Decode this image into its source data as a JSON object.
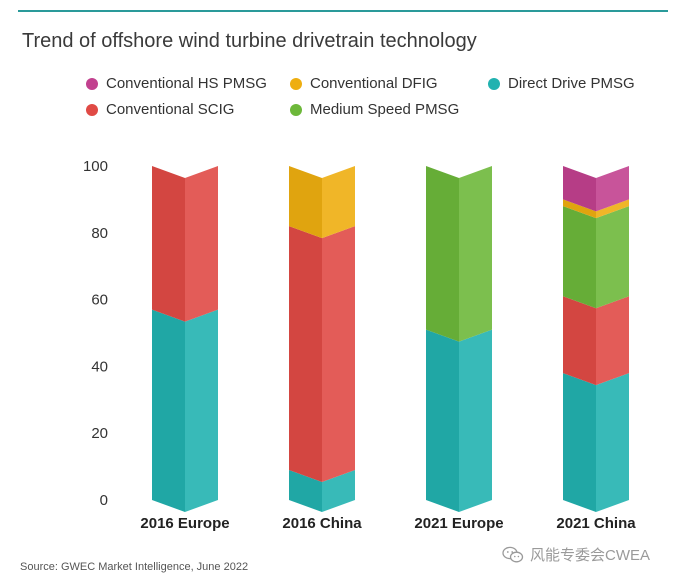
{
  "title": "Trend of offshore wind turbine drivetrain technology",
  "source": "Source: GWEC Market Intelligence, June 2022",
  "watermark": "风能专委会CWEA",
  "chart_data": {
    "type": "bar",
    "stacked": true,
    "title": "Trend of offshore wind turbine drivetrain technology",
    "xlabel": "",
    "ylabel": "",
    "ylim": [
      0,
      100
    ],
    "yticks": [
      0,
      20,
      40,
      60,
      80,
      100
    ],
    "categories": [
      "2016 Europe",
      "2016 China",
      "2021 Europe",
      "2021 China"
    ],
    "series": [
      {
        "name": "Direct Drive PMSG",
        "color": "#22b2b0",
        "values": [
          57,
          9,
          51,
          38
        ]
      },
      {
        "name": "Conventional SCIG",
        "color": "#e04a45",
        "values": [
          43,
          73,
          0,
          23
        ]
      },
      {
        "name": "Medium Speed PMSG",
        "color": "#6db83a",
        "values": [
          0,
          0,
          49,
          27
        ]
      },
      {
        "name": "Conventional DFIG",
        "color": "#eeae10",
        "values": [
          0,
          18,
          0,
          2
        ]
      },
      {
        "name": "Conventional HS PMSG",
        "color": "#c2418f",
        "values": [
          0,
          0,
          0,
          10
        ]
      }
    ],
    "legend": [
      {
        "name": "Conventional HS PMSG",
        "color": "#c2418f"
      },
      {
        "name": "Conventional DFIG",
        "color": "#eeae10"
      },
      {
        "name": "Direct Drive PMSG",
        "color": "#22b2b0"
      },
      {
        "name": "Conventional SCIG",
        "color": "#e04a45"
      },
      {
        "name": "Medium Speed PMSG",
        "color": "#6db83a"
      }
    ],
    "legend_position": "top",
    "grid": false
  }
}
